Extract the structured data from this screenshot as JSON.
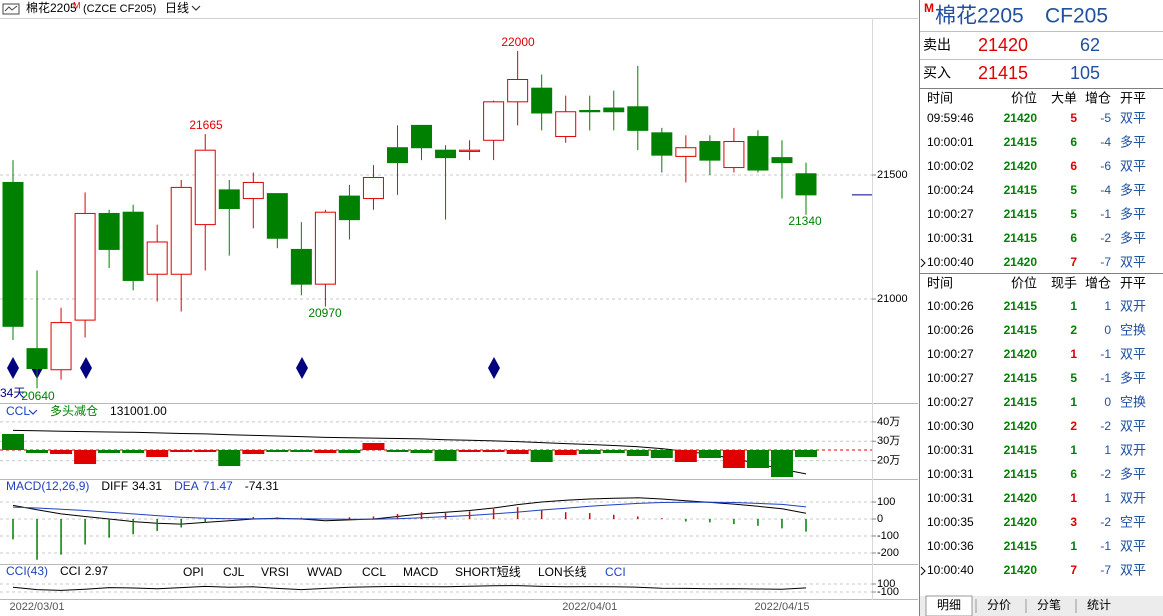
{
  "toolbar": {
    "name": "棉花2205",
    "badge": "M",
    "code": "(CZCE CF205)",
    "period": "日线"
  },
  "annotation": "34天",
  "chart_data": [
    {
      "type": "candlestick",
      "up_color": "#e00000",
      "down_color": "#008000",
      "grid": true,
      "categories": [
        null,
        "2022/03/01",
        null,
        null,
        null,
        null,
        null,
        null,
        null,
        null,
        null,
        null,
        null,
        null,
        null,
        null,
        null,
        null,
        null,
        null,
        null,
        null,
        null,
        null,
        "2022/04/01",
        null,
        null,
        null,
        null,
        null,
        null,
        null,
        "2022/04/15",
        null
      ],
      "open": [
        21470,
        20800,
        20715,
        20915,
        21345,
        21350,
        21100,
        21100,
        21300,
        21440,
        21405,
        21425,
        21200,
        21060,
        21415,
        21405,
        21610,
        21700,
        21600,
        21595,
        21640,
        21795,
        21850,
        21655,
        21760,
        21770,
        21775,
        21670,
        21575,
        21635,
        21530,
        21655,
        21570,
        21505
      ],
      "high": [
        21560,
        21115,
        20965,
        21430,
        21360,
        21380,
        21300,
        21480,
        21665,
        21480,
        21510,
        21425,
        21310,
        21360,
        21460,
        21540,
        21700,
        21700,
        21620,
        21640,
        21800,
        22000,
        21905,
        21820,
        21820,
        21840,
        21940,
        21690,
        21660,
        21660,
        21690,
        21680,
        21640,
        21550
      ],
      "low": [
        20835,
        20640,
        20675,
        20845,
        21125,
        21035,
        20990,
        20950,
        21115,
        21175,
        21285,
        21205,
        21015,
        20970,
        21240,
        21360,
        21420,
        21560,
        21320,
        21560,
        21560,
        21700,
        21680,
        21630,
        21680,
        21680,
        21600,
        21510,
        21470,
        21500,
        21510,
        21510,
        21405,
        21340
      ],
      "close": [
        20890,
        20720,
        20905,
        21345,
        21200,
        21075,
        21230,
        21450,
        21600,
        21365,
        21470,
        21245,
        21060,
        21350,
        21320,
        21490,
        21550,
        21610,
        21570,
        21600,
        21795,
        21885,
        21750,
        21755,
        21755,
        21755,
        21680,
        21580,
        21610,
        21560,
        21635,
        21520,
        21550,
        21420
      ],
      "ylim": [
        20593,
        22145
      ],
      "yticks": [
        21000,
        21500
      ]
    },
    {
      "type": "combo",
      "title": "CCL",
      "status": "多头减仓",
      "grid": true,
      "series": [
        {
          "kind": "line",
          "color": "#000000",
          "values": [
            356000,
            354000,
            352000,
            350000,
            348000,
            346000,
            343000,
            340000,
            338000,
            334000,
            330000,
            327000,
            324000,
            320000,
            318000,
            316000,
            314000,
            312000,
            308000,
            305000,
            302000,
            298000,
            293000,
            288000,
            283000,
            278000,
            272000,
            262000,
            248000,
            232000,
            210000,
            185000,
            155000,
            131001
          ],
          "value_labels": [
            null,
            null,
            null,
            null,
            null,
            null,
            null,
            null,
            null,
            null,
            null,
            null,
            null,
            null,
            null,
            null,
            null,
            null,
            null,
            null,
            null,
            null,
            null,
            null,
            null,
            null,
            null,
            null,
            null,
            null,
            null,
            null,
            null,
            "131001.00"
          ]
        },
        {
          "kind": "bar",
          "axis": "y2",
          "values": [
            16000,
            -3000,
            -4000,
            -14000,
            -3000,
            -3000,
            -7000,
            -2000,
            -2000,
            -16000,
            -4000,
            -2000,
            -2000,
            -3000,
            -3000,
            7000,
            -2000,
            -3000,
            -11000,
            -2000,
            -2000,
            -4000,
            -12000,
            -5000,
            -4000,
            -3000,
            -6000,
            -8000,
            -12000,
            -8000,
            -18000,
            -18000,
            -27000,
            -7000
          ]
        }
      ],
      "ylim": [
        110000,
        477000
      ],
      "yticks": [
        {
          "value": 400000,
          "label": "40万"
        },
        {
          "value": 300000,
          "label": "30万"
        },
        {
          "value": 200000,
          "label": "20万"
        }
      ],
      "y2lim": [
        -28000,
        43000
      ]
    },
    {
      "type": "combo",
      "title": "MACD(12,26,9)",
      "grid": true,
      "series": [
        {
          "name": "DIFF",
          "kind": "line",
          "color": "#000000",
          "values": [
            80,
            55,
            30,
            15,
            0,
            -15,
            -25,
            -30,
            -20,
            -10,
            0,
            5,
            0,
            -10,
            -5,
            0,
            15,
            30,
            40,
            50,
            65,
            85,
            100,
            110,
            118,
            122,
            125,
            118,
            108,
            98,
            88,
            75,
            60,
            34.31
          ]
        },
        {
          "name": "DEA",
          "kind": "line",
          "color": "#2040c0",
          "values": [
            70,
            65,
            58,
            50,
            40,
            30,
            20,
            10,
            5,
            2,
            1,
            2,
            2,
            0,
            -1,
            -1,
            2,
            8,
            14,
            21,
            30,
            41,
            53,
            64,
            75,
            84,
            92,
            97,
            99,
            99,
            97,
            92,
            86,
            71.47
          ]
        },
        {
          "kind": "bar",
          "color": "#000000",
          "values": [
            -120,
            -240,
            -210,
            -150,
            -110,
            -90,
            -70,
            -50,
            -20,
            5,
            12,
            10,
            8,
            0,
            10,
            15,
            30,
            40,
            35,
            45,
            60,
            70,
            50,
            40,
            35,
            25,
            15,
            5,
            -15,
            -20,
            -30,
            -40,
            -55,
            -74.31
          ]
        }
      ],
      "ylim": [
        -259,
        218
      ],
      "yticks": [
        100,
        0,
        -100,
        -200
      ]
    },
    {
      "type": "combo",
      "title": "CCI(43)",
      "grid": true,
      "series": [
        {
          "name": "CCI",
          "kind": "line",
          "color": "#000000",
          "values": [
            20,
            -40,
            -60,
            -30,
            10,
            0,
            -20,
            10,
            40,
            20,
            30,
            -10,
            -40,
            -10,
            20,
            30,
            40,
            35,
            30,
            45,
            55,
            60,
            40,
            30,
            35,
            30,
            20,
            -5,
            -10,
            -20,
            -15,
            -25,
            -30,
            2.97
          ]
        }
      ],
      "ylim": [
        -250,
        525
      ],
      "yticks": [
        100,
        -100
      ]
    }
  ],
  "indicator_tabs": [
    "OPI",
    "CJL",
    "VRSI",
    "WVAD",
    "CCL",
    "MACD",
    "SHORT短线",
    "LON长线",
    "CCI"
  ],
  "quote": {
    "badge": "M",
    "name": "棉花2205",
    "code": "CF205",
    "sell": {
      "label": "卖出",
      "price": "21420",
      "volume": "62"
    },
    "buy": {
      "label": "买入",
      "price": "21415",
      "volume": "105"
    }
  },
  "big_orders": {
    "columns": [
      "时间",
      "价位",
      "大单",
      "增仓",
      "开平"
    ],
    "rows": [
      [
        "09:59:46",
        "21420",
        "5",
        "-5",
        "双平"
      ],
      [
        "10:00:01",
        "21415",
        "6",
        "-4",
        "多平"
      ],
      [
        "10:00:02",
        "21420",
        "6",
        "-6",
        "双平"
      ],
      [
        "10:00:24",
        "21415",
        "5",
        "-4",
        "多平"
      ],
      [
        "10:00:27",
        "21415",
        "5",
        "-1",
        "多平"
      ],
      [
        "10:00:31",
        "21415",
        "6",
        "-2",
        "多平"
      ],
      [
        "10:00:40",
        "21420",
        "7",
        "-7",
        "双平"
      ]
    ]
  },
  "ticks": {
    "columns": [
      "时间",
      "价位",
      "现手",
      "增仓",
      "开平"
    ],
    "rows": [
      [
        "10:00:26",
        "21415",
        "1",
        "1",
        "双开"
      ],
      [
        "10:00:26",
        "21415",
        "2",
        "0",
        "空换"
      ],
      [
        "10:00:27",
        "21420",
        "1",
        "-1",
        "双平"
      ],
      [
        "10:00:27",
        "21415",
        "5",
        "-1",
        "多平"
      ],
      [
        "10:00:27",
        "21415",
        "1",
        "0",
        "空换"
      ],
      [
        "10:00:30",
        "21420",
        "2",
        "-2",
        "双平"
      ],
      [
        "10:00:31",
        "21415",
        "1",
        "1",
        "双开"
      ],
      [
        "10:00:31",
        "21415",
        "6",
        "-2",
        "多平"
      ],
      [
        "10:00:31",
        "21420",
        "1",
        "1",
        "双开"
      ],
      [
        "10:00:35",
        "21420",
        "3",
        "-2",
        "空平"
      ],
      [
        "10:00:36",
        "21415",
        "1",
        "-1",
        "双平"
      ],
      [
        "10:00:40",
        "21420",
        "7",
        "-7",
        "双平"
      ]
    ]
  },
  "tabs": [
    "明细",
    "分价",
    "分笔",
    "统计"
  ]
}
